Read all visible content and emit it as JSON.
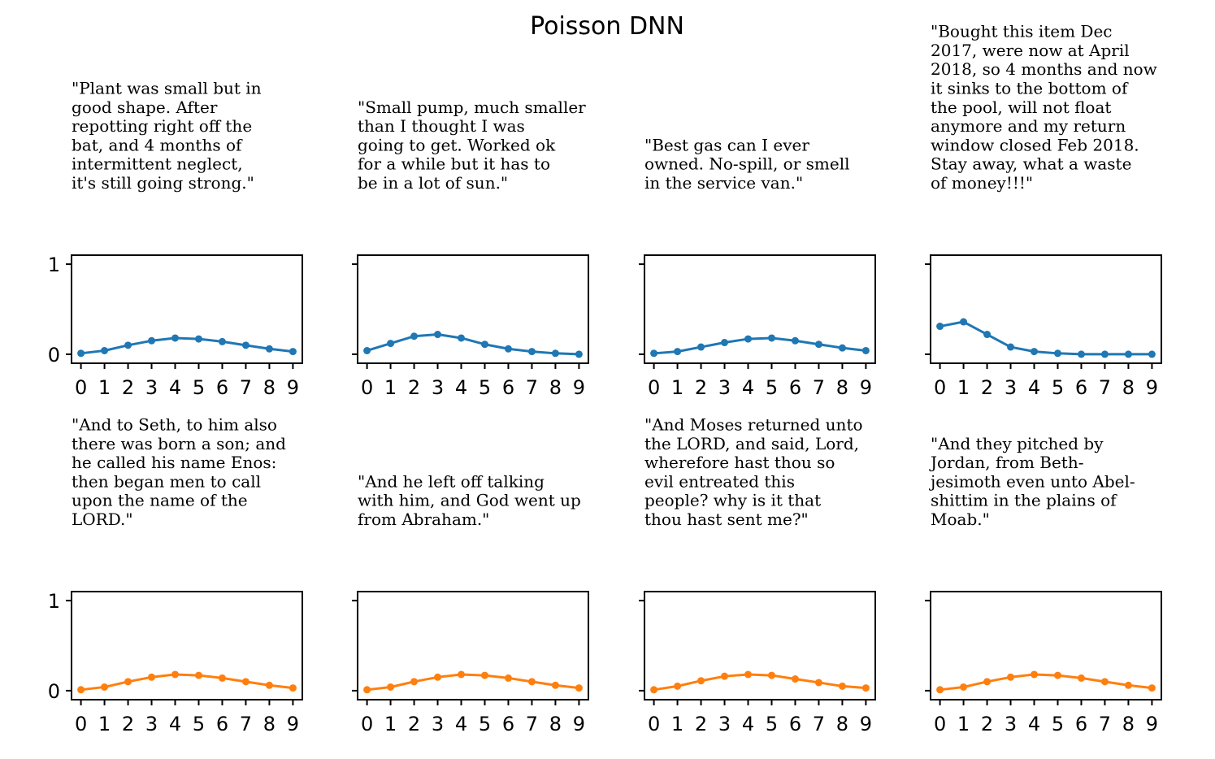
{
  "figure": {
    "title": "Poisson DNN"
  },
  "colors": {
    "row1": "#1f77b4",
    "row2": "#ff7f0e"
  },
  "chart_data": [
    {
      "type": "line",
      "row": 0,
      "text_lines": [
        "\"Plant was small but in",
        "good shape. After",
        "repotting right off the",
        "bat, and 4 months of",
        "intermittent neglect,",
        "it's still going strong.\""
      ],
      "x": [
        0,
        1,
        2,
        3,
        4,
        5,
        6,
        7,
        8,
        9
      ],
      "y": [
        0.01,
        0.04,
        0.1,
        0.15,
        0.18,
        0.17,
        0.14,
        0.1,
        0.06,
        0.03
      ],
      "ylim": [
        -0.1,
        1.1
      ],
      "yticks": [
        0,
        1
      ],
      "color": "#1f77b4"
    },
    {
      "type": "line",
      "row": 0,
      "text_lines": [
        "\"Small pump, much smaller",
        "than I thought I was",
        "going to get.  Worked ok",
        "for a while but it has to",
        "be in a lot of sun.\""
      ],
      "x": [
        0,
        1,
        2,
        3,
        4,
        5,
        6,
        7,
        8,
        9
      ],
      "y": [
        0.04,
        0.12,
        0.2,
        0.22,
        0.18,
        0.11,
        0.06,
        0.03,
        0.01,
        0.0
      ],
      "ylim": [
        -0.1,
        1.1
      ],
      "yticks": [
        0,
        1
      ],
      "color": "#1f77b4"
    },
    {
      "type": "line",
      "row": 0,
      "text_lines": [
        "\"Best gas can I ever",
        "owned. No-spill, or smell",
        "in the service van.\""
      ],
      "x": [
        0,
        1,
        2,
        3,
        4,
        5,
        6,
        7,
        8,
        9
      ],
      "y": [
        0.01,
        0.03,
        0.08,
        0.13,
        0.17,
        0.18,
        0.15,
        0.11,
        0.07,
        0.04
      ],
      "ylim": [
        -0.1,
        1.1
      ],
      "yticks": [
        0,
        1
      ],
      "color": "#1f77b4"
    },
    {
      "type": "line",
      "row": 0,
      "text_lines": [
        "\"Bought this item Dec",
        "2017, were now at April",
        "2018, so 4 months and now",
        "it sinks to the bottom of",
        "the pool, will not float",
        "anymore and my return",
        "window closed Feb 2018.",
        "Stay away, what a waste",
        "of money!!!\""
      ],
      "x": [
        0,
        1,
        2,
        3,
        4,
        5,
        6,
        7,
        8,
        9
      ],
      "y": [
        0.31,
        0.36,
        0.22,
        0.08,
        0.03,
        0.01,
        0.0,
        0.0,
        0.0,
        0.0
      ],
      "ylim": [
        -0.1,
        1.1
      ],
      "yticks": [
        0,
        1
      ],
      "color": "#1f77b4"
    },
    {
      "type": "line",
      "row": 1,
      "text_lines": [
        "\"And to Seth, to him also",
        "there was born a son; and",
        "he called his name Enos:",
        "then began men to call",
        "upon the name of the",
        "LORD.\""
      ],
      "x": [
        0,
        1,
        2,
        3,
        4,
        5,
        6,
        7,
        8,
        9
      ],
      "y": [
        0.01,
        0.04,
        0.1,
        0.15,
        0.18,
        0.17,
        0.14,
        0.1,
        0.06,
        0.03
      ],
      "ylim": [
        -0.1,
        1.1
      ],
      "yticks": [
        0,
        1
      ],
      "color": "#ff7f0e"
    },
    {
      "type": "line",
      "row": 1,
      "text_lines": [
        "\"And he left off talking",
        "with him, and God went up",
        "from Abraham.\""
      ],
      "x": [
        0,
        1,
        2,
        3,
        4,
        5,
        6,
        7,
        8,
        9
      ],
      "y": [
        0.01,
        0.04,
        0.1,
        0.15,
        0.18,
        0.17,
        0.14,
        0.1,
        0.06,
        0.03
      ],
      "ylim": [
        -0.1,
        1.1
      ],
      "yticks": [
        0,
        1
      ],
      "color": "#ff7f0e"
    },
    {
      "type": "line",
      "row": 1,
      "text_lines": [
        "\"And Moses returned unto",
        "the LORD, and said, Lord,",
        "wherefore hast thou so",
        "evil entreated this",
        "people? why is it that",
        "thou hast sent me?\""
      ],
      "x": [
        0,
        1,
        2,
        3,
        4,
        5,
        6,
        7,
        8,
        9
      ],
      "y": [
        0.01,
        0.05,
        0.11,
        0.16,
        0.18,
        0.17,
        0.13,
        0.09,
        0.05,
        0.03
      ],
      "ylim": [
        -0.1,
        1.1
      ],
      "yticks": [
        0,
        1
      ],
      "color": "#ff7f0e"
    },
    {
      "type": "line",
      "row": 1,
      "text_lines": [
        "\"And they pitched by",
        "Jordan, from Beth-",
        "jesimoth even unto Abel-",
        "shittim in the plains of",
        "Moab.\""
      ],
      "x": [
        0,
        1,
        2,
        3,
        4,
        5,
        6,
        7,
        8,
        9
      ],
      "y": [
        0.01,
        0.04,
        0.1,
        0.15,
        0.18,
        0.17,
        0.14,
        0.1,
        0.06,
        0.03
      ],
      "ylim": [
        -0.1,
        1.1
      ],
      "yticks": [
        0,
        1
      ],
      "color": "#ff7f0e"
    }
  ]
}
